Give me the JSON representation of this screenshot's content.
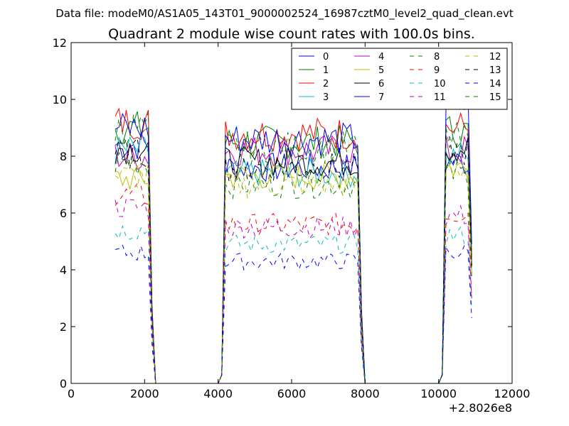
{
  "chart_data": {
    "type": "line",
    "suptitle": "Data file: modeM0/AS1A05_143T01_9000002524_16987cztM0_level2_quad_clean.evt",
    "title": "Quadrant 2 module wise count rates with 100.0s bins.",
    "xlabel": "",
    "ylabel": "",
    "x_offset_label": "+2.8026e8",
    "xlim": [
      0,
      12000
    ],
    "ylim": [
      0,
      12
    ],
    "xticks": [
      0,
      2000,
      4000,
      6000,
      8000,
      10000,
      12000
    ],
    "yticks": [
      0,
      2,
      4,
      6,
      8,
      10,
      12
    ],
    "grid": false,
    "legend_position": "top-right",
    "legend_columns": 4,
    "segments": [
      {
        "x_start": 1200,
        "x_end": 2200,
        "step": 100
      },
      {
        "x_start": 4100,
        "x_end": 7900,
        "step": 100
      },
      {
        "x_start": 10100,
        "x_end": 10900,
        "step": 100
      }
    ],
    "zero_spans": [
      [
        2200,
        4100
      ],
      [
        7900,
        10100
      ]
    ],
    "series": [
      {
        "name": "0",
        "color": "#0000ff",
        "dash": "solid",
        "levels": [
          8.4,
          7.6,
          7.8
        ]
      },
      {
        "name": "1",
        "color": "#007f00",
        "dash": "solid",
        "levels": [
          9.0,
          8.5,
          8.9
        ]
      },
      {
        "name": "2",
        "color": "#ff0000",
        "dash": "solid",
        "levels": [
          9.2,
          8.8,
          9.0
        ]
      },
      {
        "name": "3",
        "color": "#00bfbf",
        "dash": "solid",
        "levels": [
          8.2,
          7.4,
          8.0
        ]
      },
      {
        "name": "4",
        "color": "#bf00bf",
        "dash": "solid",
        "levels": [
          8.0,
          8.2,
          8.2
        ]
      },
      {
        "name": "5",
        "color": "#bfbf00",
        "dash": "solid",
        "levels": [
          7.2,
          7.3,
          7.6
        ]
      },
      {
        "name": "6",
        "color": "#000000",
        "dash": "solid",
        "levels": [
          8.3,
          7.8,
          8.3
        ]
      },
      {
        "name": "7",
        "color": "#0000ff",
        "dash": "solid",
        "levels": [
          9.0,
          8.6,
          9.8
        ]
      },
      {
        "name": "8",
        "color": "#007f00",
        "dash": "dashed",
        "levels": [
          7.8,
          7.0,
          7.4
        ]
      },
      {
        "name": "9",
        "color": "#ff0000",
        "dash": "dashed",
        "levels": [
          6.6,
          5.6,
          6.0
        ]
      },
      {
        "name": "10",
        "color": "#00bfbf",
        "dash": "dashed",
        "levels": [
          5.4,
          4.9,
          5.2
        ]
      },
      {
        "name": "11",
        "color": "#bf00bf",
        "dash": "dashed",
        "levels": [
          6.2,
          5.5,
          5.9
        ]
      },
      {
        "name": "12",
        "color": "#bfbf00",
        "dash": "dashed",
        "levels": [
          7.3,
          7.0,
          7.6
        ]
      },
      {
        "name": "13",
        "color": "#000000",
        "dash": "dashed",
        "levels": [
          8.1,
          7.6,
          8.2
        ]
      },
      {
        "name": "14",
        "color": "#0000ff",
        "dash": "dashed",
        "levels": [
          4.6,
          4.3,
          4.6
        ]
      },
      {
        "name": "15",
        "color": "#007f00",
        "dash": "dashed",
        "levels": [
          9.0,
          8.3,
          8.6
        ]
      }
    ]
  }
}
